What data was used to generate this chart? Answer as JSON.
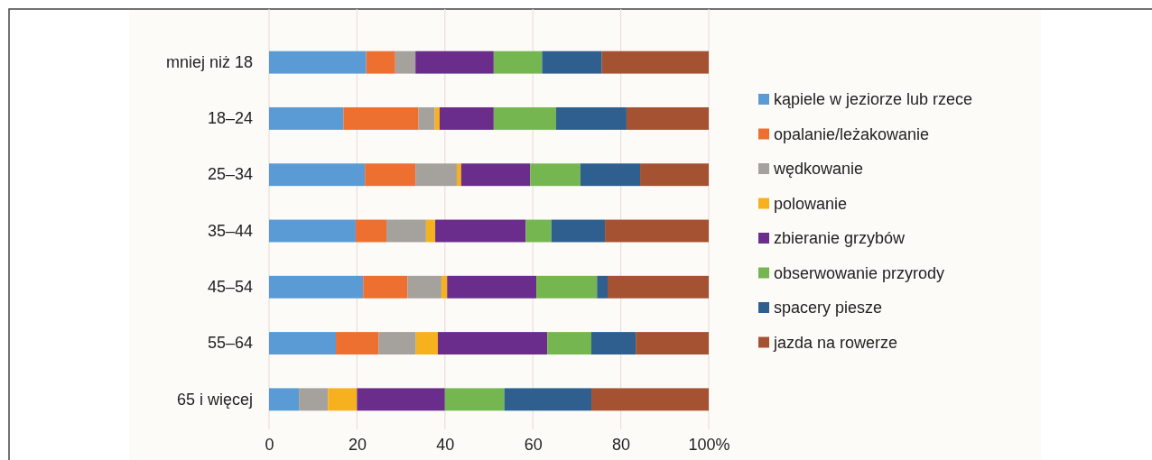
{
  "chart_data": {
    "type": "bar",
    "orientation": "horizontal",
    "stacked": true,
    "categories": [
      "mniej niż 18",
      "18–24",
      "25–34",
      "35–44",
      "45–54",
      "55–64",
      "65 i więcej"
    ],
    "series": [
      {
        "name": "kąpiele w jeziorze lub rzece",
        "color": "#5b9bd5",
        "values": [
          22.1,
          16.9,
          21.8,
          19.7,
          21.4,
          15.2,
          6.8
        ]
      },
      {
        "name": "opalanie/leżakowanie",
        "color": "#ed7031",
        "values": [
          6.6,
          17.1,
          11.5,
          7.0,
          10.1,
          9.7,
          0
        ]
      },
      {
        "name": "wędkowanie",
        "color": "#a5a19c",
        "values": [
          4.6,
          3.7,
          9.4,
          9.0,
          7.7,
          8.5,
          6.6
        ]
      },
      {
        "name": "polowanie",
        "color": "#f7b11e",
        "values": [
          0,
          1.1,
          1.0,
          2.1,
          1.3,
          5.0,
          6.6
        ]
      },
      {
        "name": "zbieranie grzybów",
        "color": "#6a2d8b",
        "values": [
          17.8,
          12.3,
          15.7,
          20.6,
          20.3,
          24.9,
          20.0
        ]
      },
      {
        "name": "obserwowanie przyrody",
        "color": "#76b650",
        "values": [
          11.0,
          14.2,
          11.4,
          5.8,
          13.8,
          10.0,
          13.5
        ]
      },
      {
        "name": "spacery piesze",
        "color": "#2e5f8f",
        "values": [
          13.6,
          16.0,
          13.6,
          12.2,
          2.4,
          10.1,
          19.8
        ]
      },
      {
        "name": "jazda na rowerze",
        "color": "#a55233",
        "values": [
          24.3,
          18.7,
          15.6,
          23.6,
          23.0,
          16.6,
          26.7
        ]
      }
    ],
    "xlim": [
      0,
      100
    ],
    "xticks": [
      0,
      20,
      40,
      60,
      80,
      {
        "value": 100,
        "label": "100%"
      }
    ],
    "grid": "x",
    "legend": "right"
  }
}
